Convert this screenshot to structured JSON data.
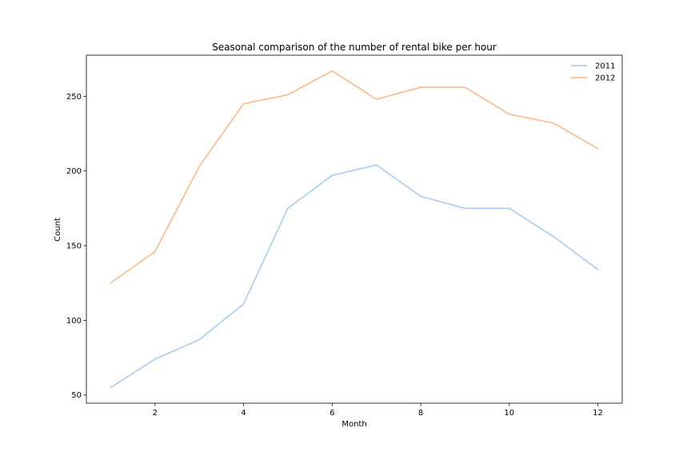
{
  "chart_data": {
    "type": "line",
    "title": "Seasonal comparison of the number of rental bike per hour",
    "xlabel": "Month",
    "ylabel": "Count",
    "x": [
      1,
      2,
      3,
      4,
      5,
      6,
      7,
      8,
      9,
      10,
      11,
      12
    ],
    "xlim": [
      0.45,
      12.55
    ],
    "ylim": [
      44.5,
      277.5
    ],
    "xticks": [
      2,
      4,
      6,
      8,
      10,
      12
    ],
    "yticks": [
      50,
      100,
      150,
      200,
      250
    ],
    "grid": false,
    "legend_position": "top-right",
    "series": [
      {
        "name": "2011",
        "color": "#a1c9f4",
        "values": [
          55,
          74,
          87,
          111,
          175,
          197,
          204,
          183,
          175,
          175,
          156,
          134
        ]
      },
      {
        "name": "2012",
        "color": "#ffb482",
        "values": [
          125,
          146,
          203,
          245,
          251,
          267,
          248,
          256,
          256,
          238,
          232,
          215
        ]
      }
    ]
  }
}
